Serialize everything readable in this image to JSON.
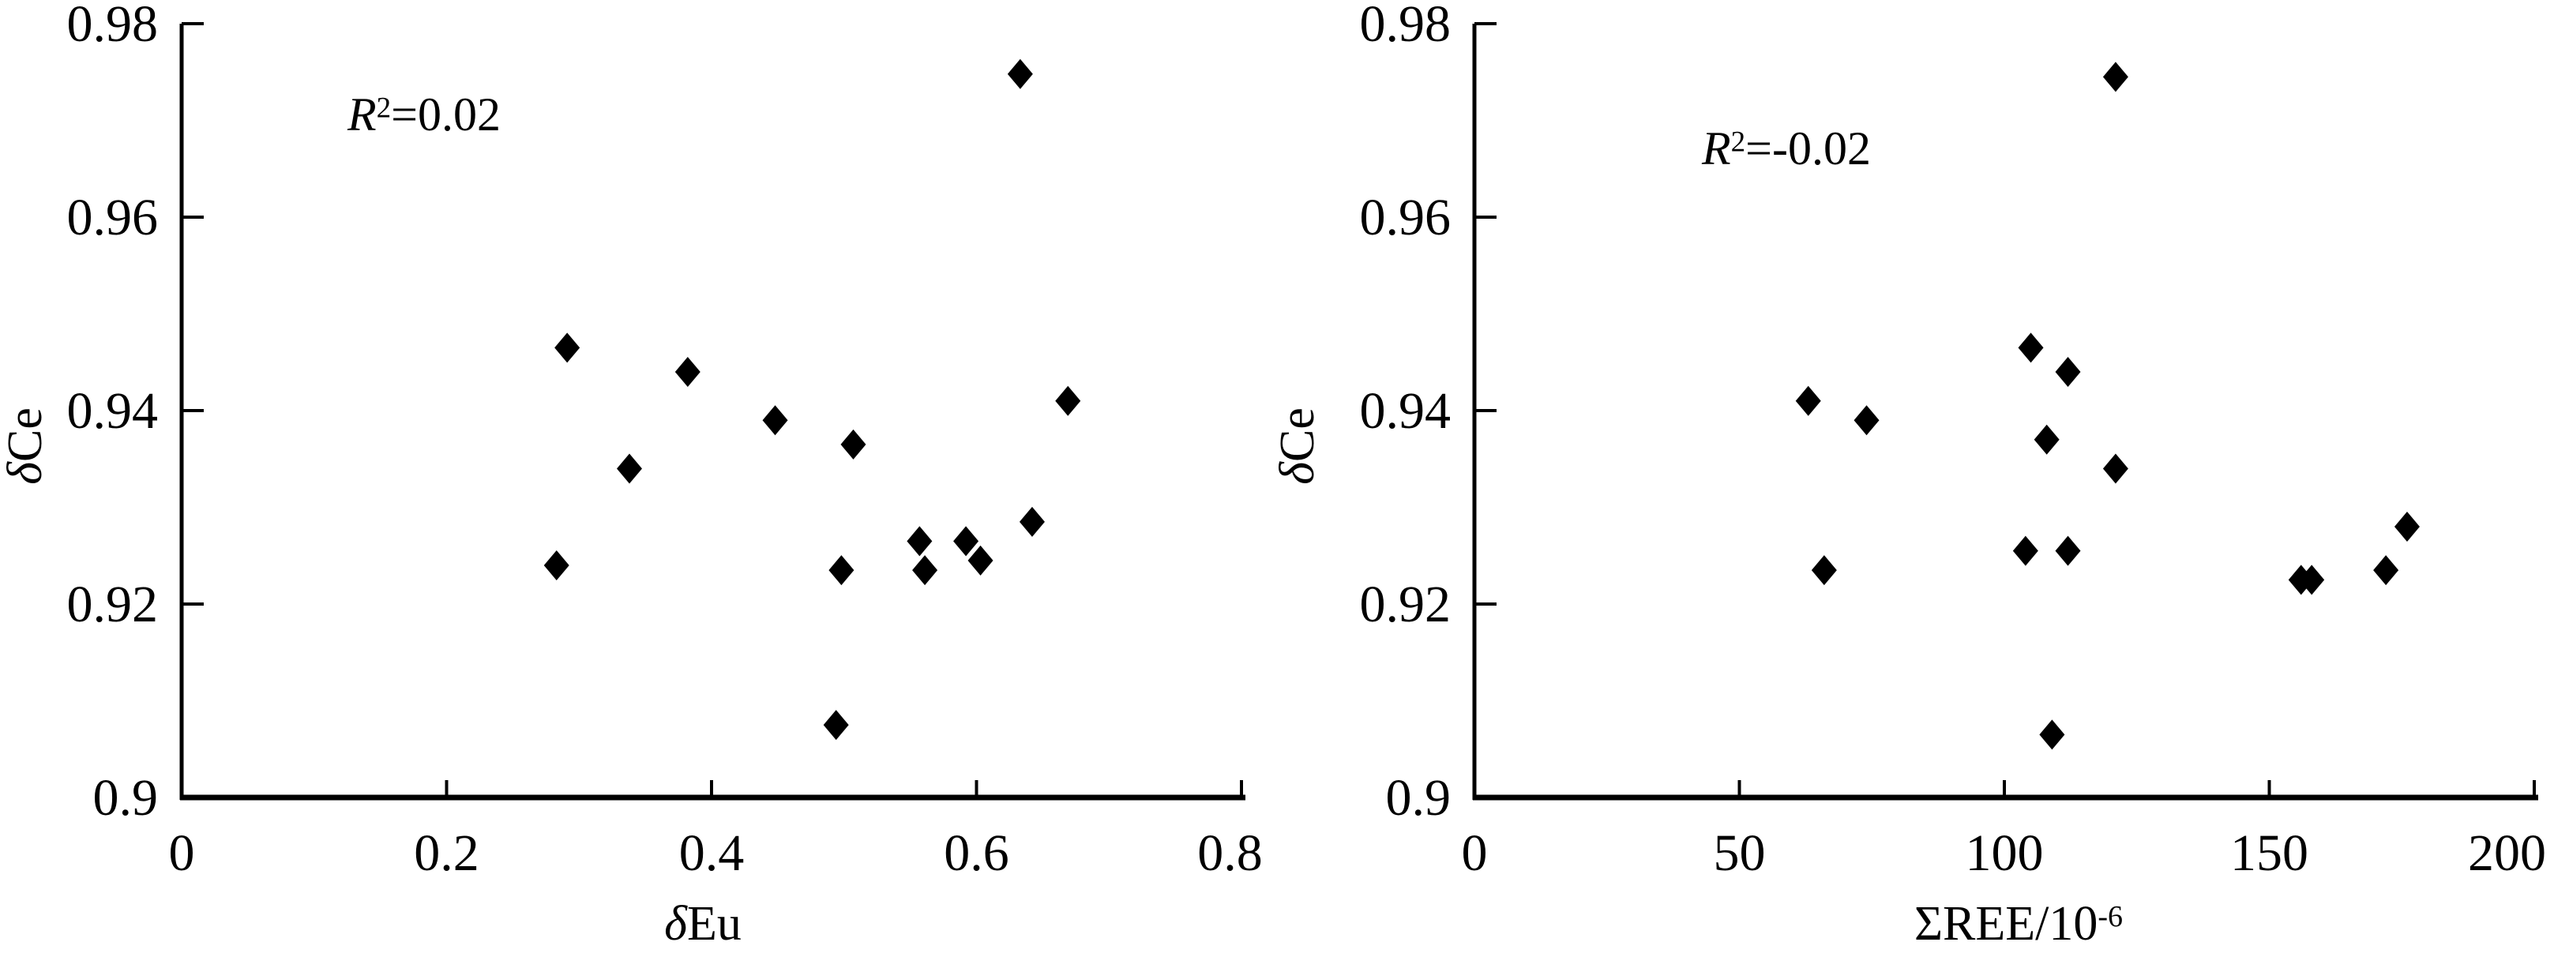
{
  "figure": {
    "description": "Two-panel scatter figure of delta-Ce versus delta-Eu and versus total REE",
    "colors": {
      "foreground": "#000000",
      "background": "#ffffff"
    }
  },
  "chart_data": [
    {
      "type": "scatter",
      "panel": "left",
      "title": "",
      "xlabel": "δEu",
      "ylabel": "δCe",
      "xlabel_parts": [
        {
          "text": "δ",
          "italic": true
        },
        {
          "text": "Eu"
        }
      ],
      "ylabel_parts": [
        {
          "text": "δ",
          "italic": true
        },
        {
          "text": "Ce"
        }
      ],
      "annotation": {
        "text": "R2=0.02",
        "parts": [
          {
            "text": "R",
            "italic": true
          },
          {
            "text": "2",
            "sup": true
          },
          {
            "text": "=0.02"
          }
        ]
      },
      "xlim": [
        0,
        0.8
      ],
      "ylim": [
        0.9,
        0.98
      ],
      "grid": false,
      "legend": null,
      "marker": {
        "shape": "diamond",
        "color": "#000000"
      },
      "xticks": [
        {
          "value": 0,
          "label": "0"
        },
        {
          "value": 0.2,
          "label": "0.2"
        },
        {
          "value": 0.4,
          "label": "0.4"
        },
        {
          "value": 0.6,
          "label": "0.6"
        },
        {
          "value": 0.8,
          "label": "0.8"
        }
      ],
      "yticks": [
        {
          "value": 0.9,
          "label": "0.9"
        },
        {
          "value": 0.92,
          "label": "0.92"
        },
        {
          "value": 0.94,
          "label": "0.94"
        },
        {
          "value": 0.96,
          "label": "0.96"
        },
        {
          "value": 0.98,
          "label": "0.98"
        }
      ],
      "points": [
        {
          "x": 0.633,
          "y": 0.9748
        },
        {
          "x": 0.291,
          "y": 0.9465
        },
        {
          "x": 0.382,
          "y": 0.944
        },
        {
          "x": 0.448,
          "y": 0.939
        },
        {
          "x": 0.507,
          "y": 0.9365
        },
        {
          "x": 0.338,
          "y": 0.934
        },
        {
          "x": 0.669,
          "y": 0.941
        },
        {
          "x": 0.642,
          "y": 0.9285
        },
        {
          "x": 0.557,
          "y": 0.9265
        },
        {
          "x": 0.592,
          "y": 0.9265
        },
        {
          "x": 0.283,
          "y": 0.924
        },
        {
          "x": 0.498,
          "y": 0.9235
        },
        {
          "x": 0.561,
          "y": 0.9235
        },
        {
          "x": 0.603,
          "y": 0.9245
        },
        {
          "x": 0.494,
          "y": 0.9075
        }
      ]
    },
    {
      "type": "scatter",
      "panel": "right",
      "title": "",
      "xlabel": "ΣREE/10-6",
      "ylabel": "δCe",
      "xlabel_parts": [
        {
          "text": "ΣREE/10"
        },
        {
          "text": "-6",
          "sup": true
        }
      ],
      "ylabel_parts": [
        {
          "text": "δ",
          "italic": true
        },
        {
          "text": "Ce"
        }
      ],
      "annotation": {
        "text": "R2=-0.02",
        "parts": [
          {
            "text": "R",
            "italic": true
          },
          {
            "text": "2",
            "sup": true
          },
          {
            "text": "=-0.02"
          }
        ]
      },
      "xlim": [
        0,
        200
      ],
      "ylim": [
        0.9,
        0.98
      ],
      "grid": false,
      "legend": null,
      "marker": {
        "shape": "diamond",
        "color": "#000000"
      },
      "xticks": [
        {
          "value": 0,
          "label": "0"
        },
        {
          "value": 50,
          "label": "50"
        },
        {
          "value": 100,
          "label": "100"
        },
        {
          "value": 150,
          "label": "150"
        },
        {
          "value": 200,
          "label": "200"
        }
      ],
      "yticks": [
        {
          "value": 0.9,
          "label": "0.9"
        },
        {
          "value": 0.92,
          "label": "0.92"
        },
        {
          "value": 0.94,
          "label": "0.94"
        },
        {
          "value": 0.96,
          "label": "0.96"
        },
        {
          "value": 0.98,
          "label": "0.98"
        }
      ],
      "points": [
        {
          "x": 121,
          "y": 0.9745
        },
        {
          "x": 105,
          "y": 0.9465
        },
        {
          "x": 112,
          "y": 0.944
        },
        {
          "x": 63,
          "y": 0.941
        },
        {
          "x": 74,
          "y": 0.939
        },
        {
          "x": 108,
          "y": 0.937
        },
        {
          "x": 121,
          "y": 0.934
        },
        {
          "x": 176,
          "y": 0.928
        },
        {
          "x": 104,
          "y": 0.9255
        },
        {
          "x": 112,
          "y": 0.9255
        },
        {
          "x": 66,
          "y": 0.9235
        },
        {
          "x": 156,
          "y": 0.9225
        },
        {
          "x": 158,
          "y": 0.9225
        },
        {
          "x": 172,
          "y": 0.9235
        },
        {
          "x": 109,
          "y": 0.9065
        }
      ]
    }
  ]
}
